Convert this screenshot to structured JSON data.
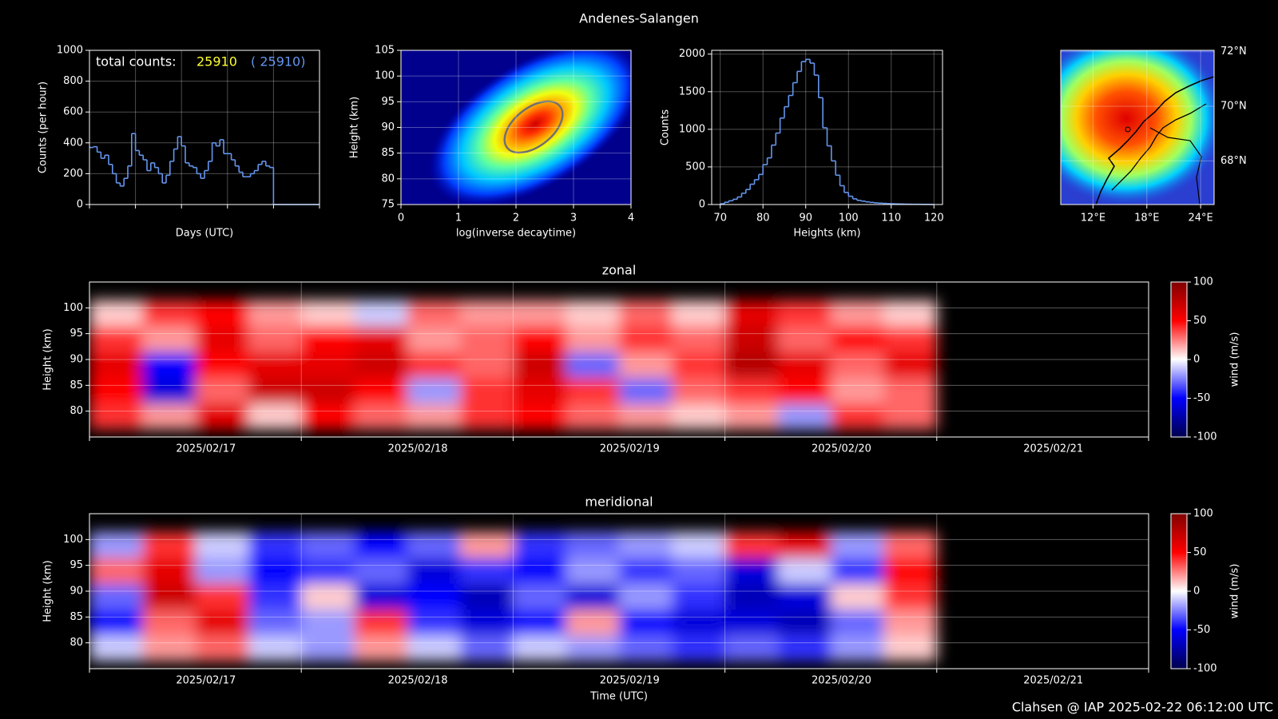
{
  "title": "Andenes-Salangen",
  "footer": "Clahsen @ IAP 2025-02-22 06:12:00 UTC",
  "chart_data": [
    {
      "type": "step",
      "ylabel": "Counts (per hour)",
      "xlabel": "Days (UTC)",
      "ylim": [
        0,
        1000
      ],
      "yticks": [
        0,
        200,
        400,
        600,
        800,
        1000
      ],
      "grid": true,
      "color": "#6495ed",
      "annotations": [
        "total counts:",
        "25910",
        "( 25910)"
      ],
      "values": [
        370,
        375,
        340,
        300,
        320,
        260,
        200,
        140,
        120,
        170,
        250,
        460,
        350,
        320,
        290,
        220,
        270,
        240,
        200,
        140,
        190,
        280,
        360,
        440,
        380,
        270,
        250,
        240,
        200,
        170,
        220,
        280,
        400,
        380,
        420,
        330,
        330,
        290,
        250,
        210,
        180,
        180,
        200,
        220,
        260,
        280,
        250,
        240,
        0,
        0,
        0,
        0,
        0,
        0,
        0,
        0,
        0,
        0,
        0,
        0
      ]
    },
    {
      "type": "density",
      "xlabel": "log(inverse decaytime)",
      "ylabel": "Height (km)",
      "xlim": [
        0,
        4
      ],
      "xticks": [
        0,
        1,
        2,
        3,
        4
      ],
      "ylim": [
        75,
        105
      ],
      "yticks": [
        75,
        80,
        85,
        90,
        95,
        100,
        105
      ],
      "grid": true
    },
    {
      "type": "histogram",
      "xlabel": "Heights (km)",
      "ylabel": "Counts",
      "color": "#6495ed",
      "grid": true,
      "xlim": [
        68,
        122
      ],
      "xticks": [
        70,
        80,
        90,
        100,
        110,
        120
      ],
      "ylim": [
        0,
        2050
      ],
      "yticks": [
        0,
        500,
        1000,
        1500,
        2000
      ],
      "bins": [
        70,
        71,
        72,
        73,
        74,
        75,
        76,
        77,
        78,
        79,
        80,
        81,
        82,
        83,
        84,
        85,
        86,
        87,
        88,
        89,
        90,
        91,
        92,
        93,
        94,
        95,
        96,
        97,
        98,
        99,
        100,
        101,
        102,
        103,
        104,
        105,
        106,
        107,
        108,
        109,
        110,
        111,
        112,
        113,
        114,
        115,
        116,
        117,
        118,
        119,
        120
      ],
      "values": [
        10,
        30,
        50,
        70,
        100,
        150,
        200,
        270,
        330,
        400,
        530,
        620,
        790,
        950,
        1150,
        1300,
        1450,
        1620,
        1770,
        1900,
        1930,
        1880,
        1720,
        1420,
        1020,
        780,
        580,
        390,
        250,
        160,
        110,
        75,
        55,
        45,
        35,
        28,
        22,
        18,
        15,
        12,
        10,
        8,
        7,
        5,
        4,
        3,
        3,
        2,
        2,
        1
      ]
    },
    {
      "type": "map",
      "xlim": [
        8.4,
        25.5
      ],
      "ylim": [
        66.4,
        72.05
      ],
      "grid": true,
      "xticks": [
        {
          "value": 12,
          "label": "12°E"
        },
        {
          "value": 18,
          "label": "18°E"
        },
        {
          "value": 24,
          "label": "24°E"
        }
      ],
      "yticks": [
        {
          "value": 68,
          "label": "68°N"
        },
        {
          "value": 70,
          "label": "70°N"
        },
        {
          "value": 72,
          "label": "72°N"
        }
      ]
    },
    {
      "type": "heatmap",
      "title": "zonal",
      "ylabel": "Height (km)",
      "categories": [
        "2025/02/17",
        "2025/02/18",
        "2025/02/19",
        "2025/02/20",
        "2025/02/21"
      ],
      "y": [
        79,
        84,
        89,
        94,
        99
      ],
      "ylim": [
        75,
        105
      ],
      "yticks": [
        80,
        85,
        90,
        95,
        100
      ],
      "zlim": [
        -100,
        100
      ],
      "zticks": [
        -100,
        -50,
        0,
        50,
        100
      ],
      "zlabel": "wind (m/s)",
      "values": [
        [
          40,
          20,
          60,
          10,
          50,
          30,
          20,
          40,
          50,
          30,
          20,
          10,
          20,
          -20,
          40,
          30,
          null,
          null,
          null,
          null
        ],
        [
          50,
          -60,
          30,
          70,
          70,
          50,
          -20,
          40,
          60,
          40,
          -30,
          30,
          40,
          50,
          20,
          30,
          null,
          null,
          null,
          null
        ],
        [
          60,
          -50,
          50,
          60,
          60,
          70,
          40,
          30,
          70,
          -30,
          20,
          40,
          80,
          60,
          30,
          60,
          null,
          null,
          null,
          null
        ],
        [
          40,
          20,
          60,
          30,
          50,
          60,
          20,
          30,
          50,
          20,
          40,
          30,
          70,
          30,
          50,
          40,
          null,
          null,
          null,
          null
        ],
        [
          10,
          40,
          50,
          20,
          10,
          -10,
          30,
          20,
          20,
          10,
          30,
          10,
          60,
          40,
          20,
          10,
          null,
          null,
          null,
          null
        ]
      ]
    },
    {
      "type": "heatmap",
      "title": "meridional",
      "ylabel": "Height (km)",
      "xlabel": "Time (UTC)",
      "categories": [
        "2025/02/17",
        "2025/02/18",
        "2025/02/19",
        "2025/02/20",
        "2025/02/21"
      ],
      "y": [
        79,
        84,
        89,
        94,
        99
      ],
      "ylim": [
        75,
        105
      ],
      "yticks": [
        80,
        85,
        90,
        95,
        100
      ],
      "zlim": [
        -100,
        100
      ],
      "zticks": [
        -100,
        -50,
        0,
        50,
        100
      ],
      "zlabel": "wind (m/s)",
      "values": [
        [
          -10,
          20,
          30,
          -10,
          -20,
          20,
          -10,
          -30,
          -10,
          -20,
          -30,
          -40,
          -30,
          -40,
          -20,
          10,
          null,
          null,
          null,
          null
        ],
        [
          -50,
          30,
          60,
          -30,
          -20,
          40,
          -40,
          -60,
          -50,
          20,
          -50,
          -60,
          -60,
          -70,
          -30,
          20,
          null,
          null,
          null,
          null
        ],
        [
          -30,
          70,
          40,
          -40,
          10,
          -60,
          -50,
          -70,
          -30,
          -60,
          -20,
          -40,
          -70,
          -60,
          10,
          40,
          null,
          null,
          null,
          null
        ],
        [
          30,
          60,
          -20,
          -50,
          -40,
          -30,
          -60,
          -40,
          -50,
          -20,
          -40,
          -30,
          -60,
          -10,
          -40,
          50,
          null,
          null,
          null,
          null
        ],
        [
          -20,
          40,
          -10,
          -40,
          -30,
          -50,
          -30,
          20,
          -40,
          -30,
          -20,
          -10,
          40,
          60,
          -20,
          30,
          null,
          null,
          null,
          null
        ]
      ]
    }
  ]
}
